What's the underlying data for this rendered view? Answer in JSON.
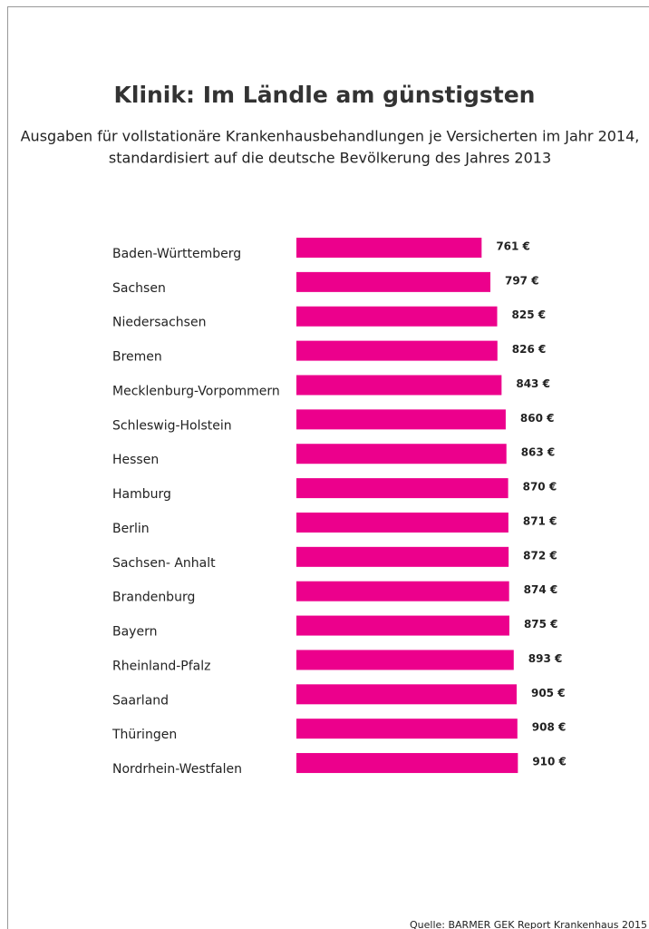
{
  "chart_data": {
    "type": "bar",
    "orientation": "horizontal",
    "title": "Klinik: Im Ländle am günstigsten",
    "subtitle": [
      "Ausgaben für vollstationäre Krankenhausbehandlungen je Versicherten im Jahr 2014,",
      "standardisiert auf die deutsche Bevölkerung des Jahres 2013"
    ],
    "categories": [
      "Baden-Württemberg",
      "Sachsen",
      "Niedersachsen",
      "Bremen",
      "Mecklenburg-Vorpommern",
      "Schleswig-Holstein",
      "Hessen",
      "Hamburg",
      "Berlin",
      "Sachsen- Anhalt",
      "Brandenburg",
      "Bayern",
      "Rheinland-Pfalz",
      "Saarland",
      "Thüringen",
      "Nordrhein-Westfalen"
    ],
    "values": [
      761,
      797,
      825,
      826,
      843,
      860,
      863,
      870,
      871,
      872,
      874,
      875,
      893,
      905,
      908,
      910
    ],
    "value_labels": [
      "761 €",
      "797 €",
      "825 €",
      "826 €",
      "843 €",
      "860 €",
      "863 €",
      "870 €",
      "871 €",
      "872 €",
      "874 €",
      "875 €",
      "893 €",
      "905 €",
      "908 €",
      "910 €"
    ],
    "color": "#ec008c",
    "xlim": [
      0,
      1000
    ],
    "source": "Quelle: BARMER GEK Report Krankenhaus 2015"
  }
}
